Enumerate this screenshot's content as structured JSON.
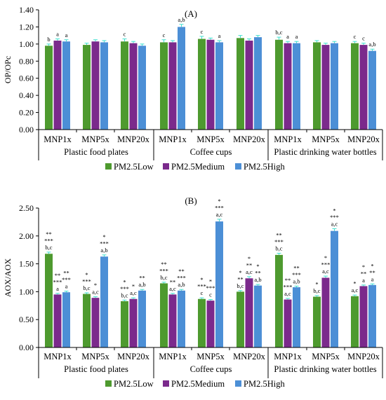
{
  "colors": {
    "low": "#4e9a2f",
    "medium": "#7b2a8c",
    "high": "#4c8fd6",
    "error": "#40e0d0"
  },
  "legend": [
    "PM2.5Low",
    "PM2.5Medium",
    "PM2.5High"
  ],
  "chart_data": [
    {
      "type": "bar",
      "title": "(A)",
      "ylabel": "OP/OPc",
      "xlabel": "",
      "ylim": [
        0,
        1.4
      ],
      "yticks": [
        "0.00",
        "0.20",
        "0.40",
        "0.60",
        "0.80",
        "1.00",
        "1.20",
        "1.40"
      ],
      "categories": [
        "MNP1x",
        "MNP5x",
        "MNP20x",
        "MNP1x",
        "MNP5x",
        "MNP20x",
        "MNP1x",
        "MNP5x",
        "MNP20x"
      ],
      "groups": [
        "Plastic food plates",
        "Coffee cups",
        "Plastic drinking water bottles"
      ],
      "legend_position": "bottom",
      "series": [
        {
          "name": "PM2.5Low",
          "values": [
            0.98,
            0.99,
            1.03,
            1.02,
            1.06,
            1.07,
            1.05,
            1.02,
            1.01
          ],
          "errors": [
            0.02,
            0.02,
            0.03,
            0.03,
            0.03,
            0.03,
            0.03,
            0.02,
            0.02
          ],
          "labels": [
            [
              "b"
            ],
            [],
            [
              "c"
            ],
            [
              "c"
            ],
            [
              "c"
            ],
            [],
            [
              "b,c"
            ],
            [],
            [
              "c"
            ]
          ]
        },
        {
          "name": "PM2.5Medium",
          "values": [
            1.04,
            1.03,
            1.01,
            1.02,
            1.05,
            1.04,
            1.01,
            0.99,
            0.99
          ],
          "errors": [
            0.02,
            0.02,
            0.02,
            0.02,
            0.02,
            0.02,
            0.02,
            0.02,
            0.02
          ],
          "labels": [
            [
              "a"
            ],
            [],
            [],
            [],
            [],
            [],
            [
              "a"
            ],
            [],
            [
              "c"
            ]
          ]
        },
        {
          "name": "PM2.5High",
          "values": [
            1.03,
            1.02,
            0.98,
            1.2,
            1.02,
            1.08,
            1.01,
            1.01,
            0.92
          ],
          "errors": [
            0.02,
            0.02,
            0.02,
            0.03,
            0.02,
            0.02,
            0.02,
            0.02,
            0.02
          ],
          "labels": [
            [
              "a"
            ],
            [],
            [],
            [
              "a,b"
            ],
            [
              "a"
            ],
            [],
            [
              "a"
            ],
            [],
            [
              "a,b"
            ]
          ]
        }
      ]
    },
    {
      "type": "bar",
      "title": "(B)",
      "ylabel": "AOX/AOX",
      "xlabel": "",
      "ylim": [
        0,
        2.5
      ],
      "yticks": [
        "0.00",
        "0.50",
        "1.00",
        "1.50",
        "2.00",
        "2.50"
      ],
      "categories": [
        "MNP1x",
        "MNP5x",
        "MNP20x",
        "MNP1x",
        "MNP5x",
        "MNP20x",
        "MNP1x",
        "MNP5x",
        "MNP20x"
      ],
      "groups": [
        "Plastic food plates",
        "Coffee cups",
        "Plastic drinking water bottles"
      ],
      "legend_position": "bottom",
      "series": [
        {
          "name": "PM2.5Low",
          "values": [
            1.68,
            0.96,
            0.83,
            1.15,
            0.87,
            1.0,
            1.66,
            0.91,
            0.92
          ],
          "errors": [
            0.03,
            0.02,
            0.02,
            0.02,
            0.02,
            0.02,
            0.03,
            0.02,
            0.02
          ],
          "labels": [
            [
              "**",
              "***",
              "b,c"
            ],
            [
              "*",
              "***",
              "b,c"
            ],
            [
              "*",
              "***",
              "b,c"
            ],
            [
              "**",
              "***",
              "b,c"
            ],
            [
              "*",
              "***",
              "c"
            ],
            [
              "*",
              "**",
              "b,c"
            ],
            [
              "**",
              "***",
              "b,c"
            ],
            [
              "*",
              "b,c"
            ],
            [
              "*",
              "a,c"
            ]
          ]
        },
        {
          "name": "PM2.5Medium",
          "values": [
            0.95,
            0.89,
            0.87,
            0.95,
            0.84,
            1.24,
            0.86,
            1.25,
            1.1
          ],
          "errors": [
            0.02,
            0.02,
            0.02,
            0.02,
            0.02,
            0.03,
            0.02,
            0.03,
            0.02
          ],
          "labels": [
            [
              "**",
              "***",
              "a"
            ],
            [
              "*",
              "a,c"
            ],
            [
              "*",
              "a,c"
            ],
            [
              "**",
              "a,c"
            ],
            [
              "*",
              "***",
              "c"
            ],
            [
              "*",
              "**",
              "a,c"
            ],
            [
              "**",
              "***",
              "a,c"
            ],
            [
              "*",
              "***",
              "a,c"
            ],
            [
              "*",
              "**",
              "a"
            ]
          ]
        },
        {
          "name": "PM2.5High",
          "values": [
            0.99,
            1.63,
            1.02,
            1.02,
            2.26,
            1.11,
            1.08,
            2.09,
            1.12
          ],
          "errors": [
            0.02,
            0.03,
            0.02,
            0.02,
            0.04,
            0.02,
            0.02,
            0.04,
            0.02
          ],
          "labels": [
            [
              "**",
              "***",
              "a"
            ],
            [
              "*",
              "***",
              "a,b"
            ],
            [
              "**",
              "a,b"
            ],
            [
              "**",
              "***",
              "a,b"
            ],
            [
              "*",
              "***",
              "a,c"
            ],
            [
              "*",
              "**",
              "a,b"
            ],
            [
              "**",
              "***",
              "a,b"
            ],
            [
              "*",
              "***",
              "a,c"
            ],
            [
              "*",
              "**",
              "a"
            ]
          ]
        }
      ]
    }
  ]
}
